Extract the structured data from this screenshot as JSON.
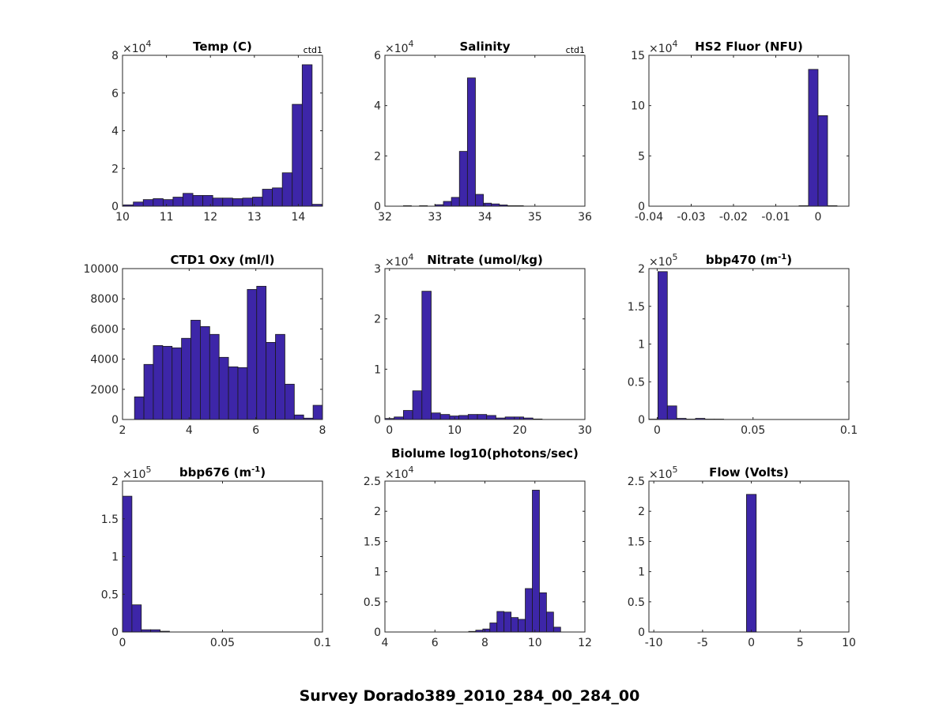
{
  "figure_title": "Survey Dorado389_2010_284_00_284_00",
  "bar_color": "#3d26a8",
  "edge_color": "#1a1a1a",
  "chart_data": [
    {
      "type": "bar",
      "title": "Temp (C)",
      "title_sup": "",
      "title_post": "",
      "tag": "ctd1",
      "exponent": "4",
      "xlim": [
        10,
        14.55
      ],
      "ylim": [
        0,
        8
      ],
      "xticks": [
        "10",
        "11",
        "12",
        "13",
        "14"
      ],
      "yticks": [
        "0",
        "2",
        "4",
        "6",
        "8"
      ],
      "bin_start": 10.02,
      "bin_width": 0.226,
      "values": [
        0.07,
        0.22,
        0.35,
        0.4,
        0.35,
        0.48,
        0.68,
        0.57,
        0.57,
        0.43,
        0.43,
        0.4,
        0.43,
        0.48,
        0.9,
        0.97,
        1.77,
        5.4,
        7.5,
        0.1
      ]
    },
    {
      "type": "bar",
      "title": "Salinity",
      "title_sup": "",
      "title_post": "",
      "tag": "ctd1",
      "exponent": "4",
      "xlim": [
        32,
        36
      ],
      "ylim": [
        0,
        6
      ],
      "xticks": [
        "32",
        "33",
        "34",
        "35",
        "36"
      ],
      "yticks": [
        "0",
        "2",
        "4",
        "6"
      ],
      "bin_start": 32.37,
      "bin_width": 0.16,
      "values": [
        0.02,
        0,
        0.02,
        0,
        0.06,
        0.19,
        0.35,
        2.18,
        5.1,
        0.47,
        0.12,
        0.09,
        0.05,
        0.02,
        0.02
      ]
    },
    {
      "type": "bar",
      "title": "HS2 Fluor (NFU)",
      "title_sup": "",
      "title_post": "",
      "tag": "",
      "exponent": "4",
      "xlim": [
        -0.04,
        0.0073
      ],
      "ylim": [
        0,
        15
      ],
      "xticks": [
        "-0.04",
        "-0.03",
        "-0.02",
        "-0.01",
        "0"
      ],
      "yticks": [
        "0",
        "5",
        "10",
        "15"
      ],
      "bin_start": -0.0045,
      "bin_width": 0.00225,
      "values": [
        0.05,
        13.6,
        9.0,
        0.05
      ]
    },
    {
      "type": "bar",
      "title": "CTD1 Oxy (ml/l)",
      "title_sup": "",
      "title_post": "",
      "tag": "",
      "exponent": "",
      "xlim": [
        2,
        8
      ],
      "ylim": [
        0,
        10000
      ],
      "xticks": [
        "2",
        "4",
        "6",
        "8"
      ],
      "yticks": [
        "0",
        "2000",
        "4000",
        "6000",
        "8000",
        "10000"
      ],
      "bin_start": 2.36,
      "bin_width": 0.282,
      "values": [
        1500,
        3650,
        4900,
        4850,
        4750,
        5380,
        6580,
        6160,
        5640,
        4120,
        3490,
        3440,
        8620,
        8830,
        5110,
        5640,
        2340,
        300,
        90,
        940
      ]
    },
    {
      "type": "bar",
      "title": "Nitrate (umol/kg)",
      "title_sup": "",
      "title_post": "",
      "tag": "",
      "exponent": "4",
      "xlim": [
        -0.7,
        30
      ],
      "ylim": [
        0,
        3
      ],
      "xticks": [
        "0",
        "10",
        "20",
        "30"
      ],
      "yticks": [
        "0",
        "1",
        "2",
        "3"
      ],
      "bin_start": -0.7,
      "bin_width": 1.42,
      "values": [
        0.02,
        0.05,
        0.18,
        0.57,
        2.55,
        0.13,
        0.1,
        0.07,
        0.08,
        0.1,
        0.1,
        0.08,
        0.03,
        0.05,
        0.05,
        0.03,
        0.01
      ]
    },
    {
      "type": "bar",
      "title": "bbp470 (m",
      "title_sup": "-1",
      "title_post": ")",
      "tag": "",
      "exponent": "5",
      "xlim": [
        -0.0043,
        0.1
      ],
      "ylim": [
        0,
        2
      ],
      "xticks": [
        "0",
        "0.05",
        "0.1"
      ],
      "yticks": [
        "0",
        "0.5",
        "1",
        "1.5",
        "2"
      ],
      "bin_start": -0.0045,
      "bin_width": 0.0049,
      "values": [
        0.005,
        1.96,
        0.18,
        0.015,
        0.005,
        0.015,
        0.005,
        0.005
      ]
    },
    {
      "type": "bar",
      "title": "bbp676 (m",
      "title_sup": "-1",
      "title_post": ")",
      "tag": "",
      "exponent": "5",
      "xlim": [
        0,
        0.1
      ],
      "ylim": [
        0,
        2
      ],
      "xticks": [
        "0",
        "0.05",
        "0.1"
      ],
      "yticks": [
        "0",
        "0.5",
        "1",
        "1.5",
        "2"
      ],
      "bin_start": 0,
      "bin_width": 0.0047,
      "values": [
        1.8,
        0.36,
        0.03,
        0.03,
        0.01
      ]
    },
    {
      "type": "bar",
      "title": "Biolume log10(photons/sec)",
      "title_sup": "",
      "title_post": "",
      "tag": "",
      "exponent": "4",
      "xlim": [
        4,
        12
      ],
      "ylim": [
        0,
        2.5
      ],
      "xticks": [
        "4",
        "6",
        "8",
        "10",
        "12"
      ],
      "yticks": [
        "0",
        "0.5",
        "1",
        "1.5",
        "2",
        "2.5"
      ],
      "bin_start": 7.35,
      "bin_width": 0.283,
      "values": [
        0.01,
        0.03,
        0.05,
        0.15,
        0.34,
        0.33,
        0.24,
        0.21,
        0.72,
        2.35,
        0.65,
        0.33,
        0.08
      ]
    },
    {
      "type": "bar",
      "title": "Flow (Volts)",
      "title_sup": "",
      "title_post": "",
      "tag": "",
      "exponent": "5",
      "xlim": [
        -10.5,
        10
      ],
      "ylim": [
        0,
        2.5
      ],
      "xticks": [
        "-10",
        "-5",
        "0",
        "5",
        "10"
      ],
      "yticks": [
        "0",
        "0.5",
        "1",
        "1.5",
        "2",
        "2.5"
      ],
      "bin_start": -0.5,
      "bin_width": 1.0,
      "values": [
        2.28
      ]
    }
  ]
}
